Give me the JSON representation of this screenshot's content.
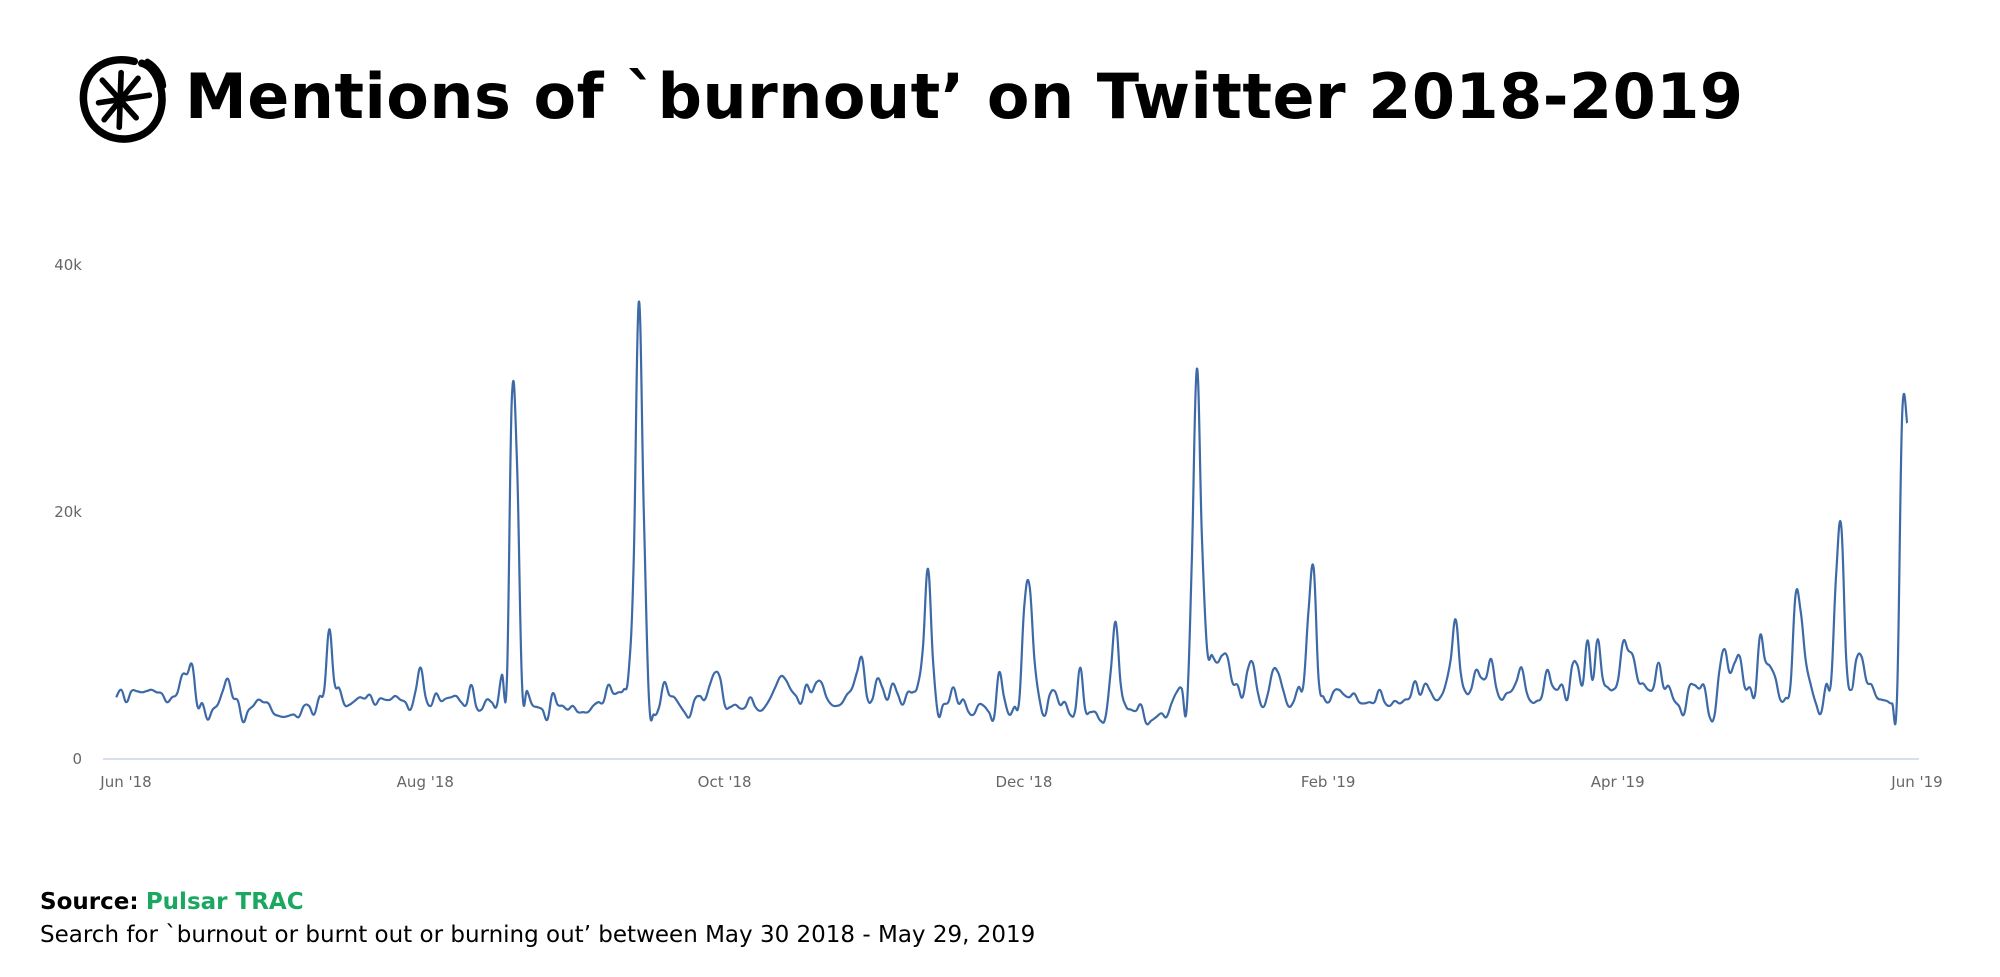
{
  "header": {
    "title": "Mentions of `burnout’ on Twitter 2018-2019",
    "logo_name": "Pulsar"
  },
  "footer": {
    "source_label": "Source:",
    "source_name": "Pulsar TRAC",
    "description": "Search for `burnout or burnt out or burning out’ between May 30 2018 - May 29, 2019"
  },
  "colors": {
    "line": "#3d6aa7",
    "axis": "#ccd6eb",
    "source": "#1aa860"
  },
  "chart_data": {
    "type": "line",
    "title": "Mentions of `burnout’ on Twitter 2018-2019",
    "xlabel": "",
    "ylabel": "",
    "x_start": "2018-05-30",
    "x_end": "2019-05-29",
    "x_unit": "day",
    "ylim": [
      0,
      40000
    ],
    "y_ticks": [
      {
        "value": 0,
        "label": "0"
      },
      {
        "value": 20000,
        "label": "20k"
      },
      {
        "value": 40000,
        "label": "40k"
      }
    ],
    "x_ticks": [
      {
        "day": 0,
        "label": "Jun '18"
      },
      {
        "day": 61,
        "label": "Aug '18"
      },
      {
        "day": 122,
        "label": "Oct '18"
      },
      {
        "day": 183,
        "label": "Dec '18"
      },
      {
        "day": 245,
        "label": "Feb '19"
      },
      {
        "day": 304,
        "label": "Apr '19"
      },
      {
        "day": 365,
        "label": "Jun '19"
      }
    ],
    "grid": false,
    "legend": "none",
    "series": [
      {
        "name": "Mentions",
        "values_k": [
          5.0,
          5.6,
          4.6,
          5.5,
          5.5,
          5.4,
          5.5,
          5.6,
          5.4,
          5.3,
          4.6,
          5.0,
          5.3,
          6.8,
          6.9,
          7.6,
          4.3,
          4.5,
          3.2,
          4.0,
          4.4,
          5.5,
          6.5,
          5.0,
          4.7,
          3.0,
          3.9,
          4.3,
          4.8,
          4.6,
          4.5,
          3.7,
          3.5,
          3.4,
          3.5,
          3.6,
          3.4,
          4.3,
          4.3,
          3.6,
          5.0,
          5.6,
          10.5,
          6.2,
          5.7,
          4.4,
          4.4,
          4.7,
          5.0,
          4.9,
          5.2,
          4.4,
          4.9,
          4.8,
          4.8,
          5.1,
          4.8,
          4.6,
          4.0,
          5.5,
          7.4,
          5.0,
          4.3,
          5.3,
          4.7,
          4.9,
          5.0,
          5.1,
          4.6,
          4.4,
          6.0,
          4.2,
          4.0,
          4.8,
          4.6,
          4.3,
          6.8,
          6.4,
          29.3,
          24.0,
          6.0,
          5.5,
          4.4,
          4.2,
          4.0,
          3.2,
          5.3,
          4.4,
          4.3,
          4.0,
          4.3,
          3.8,
          3.8,
          3.8,
          4.3,
          4.6,
          4.6,
          6.0,
          5.3,
          5.4,
          5.6,
          7.0,
          16.0,
          37.0,
          20.0,
          5.0,
          3.6,
          4.2,
          6.2,
          5.2,
          5.0,
          4.4,
          3.8,
          3.4,
          4.8,
          5.1,
          4.8,
          6.0,
          7.0,
          6.6,
          4.3,
          4.2,
          4.4,
          4.1,
          4.2,
          5.0,
          4.2,
          3.9,
          4.3,
          5.0,
          5.9,
          6.7,
          6.4,
          5.6,
          5.1,
          4.5,
          6.0,
          5.4,
          6.2,
          6.2,
          5.0,
          4.4,
          4.3,
          4.5,
          5.2,
          5.7,
          7.0,
          8.2,
          5.0,
          4.8,
          6.5,
          5.8,
          4.8,
          6.1,
          5.3,
          4.4,
          5.4,
          5.4,
          6.0,
          9.0,
          15.4,
          8.0,
          3.6,
          4.4,
          4.6,
          5.8,
          4.5,
          4.8,
          3.8,
          3.6,
          4.4,
          4.3,
          3.8,
          3.3,
          7.0,
          5.0,
          3.6,
          4.2,
          4.8,
          12.5,
          14.1,
          8.0,
          4.8,
          3.5,
          5.2,
          5.5,
          4.4,
          4.6,
          3.6,
          3.9,
          7.4,
          4.0,
          3.8,
          3.8,
          3.1,
          3.4,
          7.0,
          11.1,
          6.0,
          4.3,
          4.0,
          3.9,
          4.4,
          2.9,
          3.1,
          3.4,
          3.7,
          3.4,
          4.5,
          5.4,
          5.7,
          4.1,
          16.0,
          31.6,
          18.0,
          9.0,
          8.4,
          7.8,
          8.4,
          8.3,
          6.2,
          6.0,
          5.0,
          7.2,
          7.8,
          5.4,
          4.2,
          5.3,
          7.2,
          7.0,
          5.6,
          4.3,
          4.6,
          5.8,
          6.0,
          12.0,
          15.5,
          6.5,
          5.0,
          4.6,
          5.5,
          5.6,
          5.2,
          5.0,
          5.3,
          4.6,
          4.5,
          4.6,
          4.6,
          5.6,
          4.6,
          4.3,
          4.7,
          4.5,
          4.8,
          5.0,
          6.3,
          5.2,
          6.1,
          5.5,
          4.8,
          5.0,
          6.0,
          8.0,
          11.3,
          7.0,
          5.4,
          5.6,
          7.2,
          6.6,
          6.6,
          8.1,
          5.8,
          4.8,
          5.3,
          5.5,
          6.3,
          7.4,
          5.4,
          4.6,
          4.7,
          5.1,
          7.2,
          6.0,
          5.6,
          6.0,
          4.8,
          7.6,
          7.6,
          6.0,
          9.6,
          6.4,
          9.7,
          6.5,
          5.8,
          5.6,
          6.4,
          9.5,
          8.8,
          8.3,
          6.3,
          6.1,
          5.6,
          5.8,
          7.8,
          5.8,
          5.9,
          4.8,
          4.3,
          3.6,
          5.8,
          6.0,
          5.7,
          5.9,
          3.5,
          3.5,
          7.2,
          8.9,
          7.0,
          7.8,
          8.3,
          5.8,
          5.8,
          5.2,
          10.0,
          8.0,
          7.5,
          6.6,
          4.8,
          4.9,
          6.0,
          13.3,
          12.0,
          8.0,
          6.0,
          4.5,
          3.7,
          6.0,
          6.3,
          15.0,
          18.9,
          8.0,
          5.6,
          8.1,
          8.3,
          6.3,
          6.0,
          5.0,
          4.8,
          4.7,
          4.5,
          5.0,
          27.7,
          27.2
        ]
      }
    ]
  }
}
